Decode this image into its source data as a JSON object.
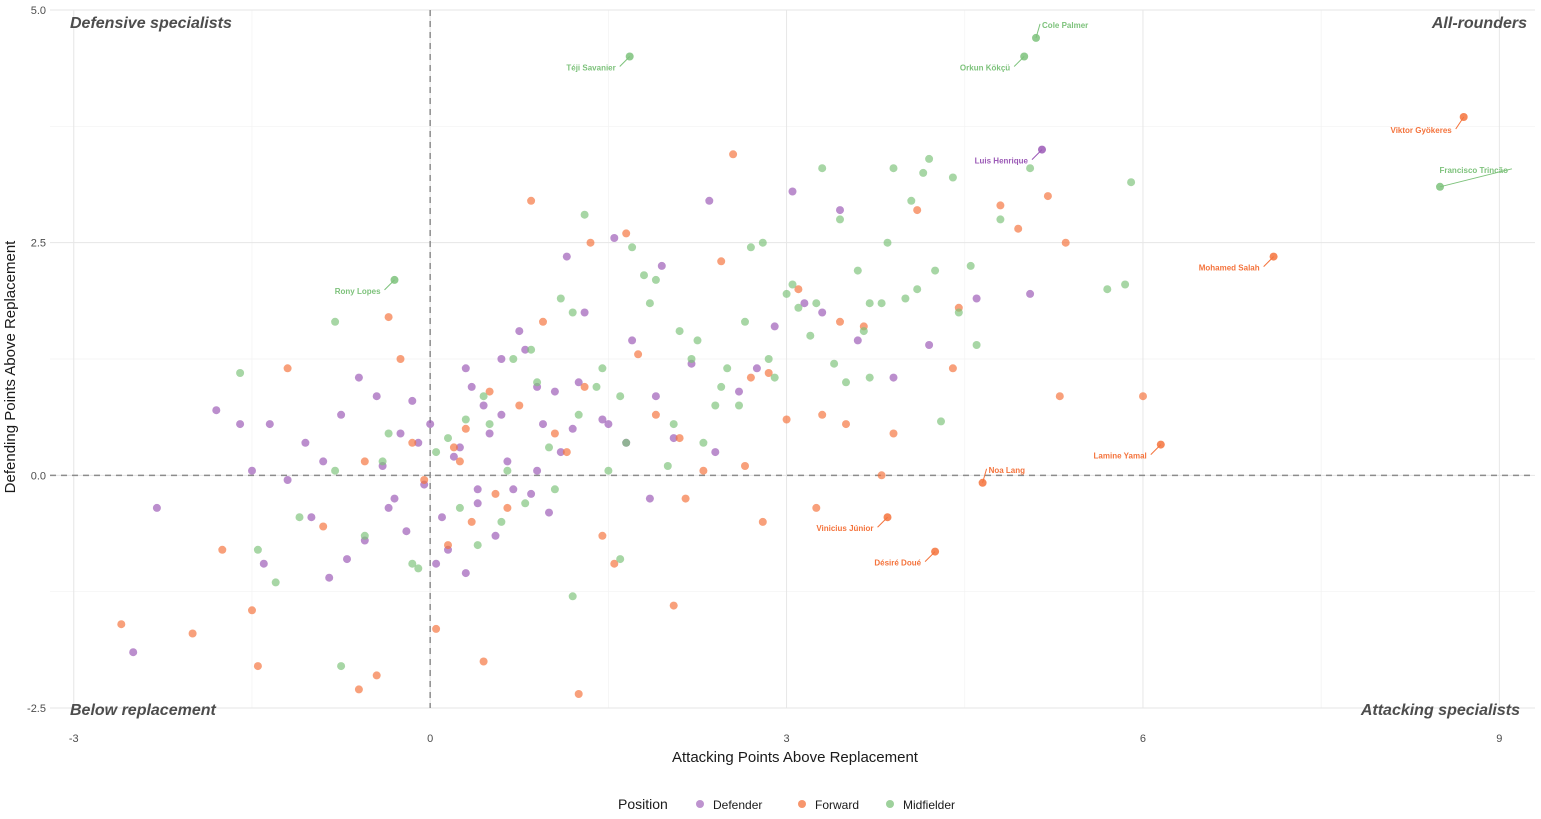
{
  "chart_data": {
    "type": "scatter",
    "xlabel": "Attacking Points Above Replacement",
    "ylabel": "Defending Points Above Replacement",
    "xlim": [
      -3.2,
      9.3
    ],
    "ylim": [
      -2.5,
      5.0
    ],
    "x_ticks": [
      -3,
      0,
      3,
      6,
      9
    ],
    "y_ticks": [
      -2.5,
      0.0,
      2.5,
      5.0
    ],
    "x_tick_labels": [
      "-3",
      "0",
      "3",
      "6",
      "9"
    ],
    "y_tick_labels": [
      "-2.5",
      "0.0",
      "2.5",
      "5.0"
    ],
    "grid": true,
    "reference_lines": {
      "x": 0,
      "y": 0
    },
    "legend": {
      "title": "Position",
      "placement": "bottom",
      "entries": [
        {
          "name": "Defender",
          "color": "#9B59B6"
        },
        {
          "name": "Forward",
          "color": "#F4733C"
        },
        {
          "name": "Midfielder",
          "color": "#7DC27B"
        }
      ]
    },
    "quadrant_labels": {
      "top_left": "Defensive specialists",
      "top_right": "All-rounders",
      "bottom_left": "Below replacement",
      "bottom_right": "Attacking specialists"
    },
    "labeled_points": [
      {
        "name": "Cole Palmer",
        "x": 5.1,
        "y": 4.7,
        "series": "Midfielder"
      },
      {
        "name": "Orkun Kökçü",
        "x": 5.0,
        "y": 4.5,
        "series": "Midfielder"
      },
      {
        "name": "Téji Savanier",
        "x": 1.68,
        "y": 4.5,
        "series": "Midfielder"
      },
      {
        "name": "Viktor Gyökeres",
        "x": 8.7,
        "y": 3.85,
        "series": "Forward"
      },
      {
        "name": "Luis Henrique",
        "x": 5.15,
        "y": 3.5,
        "series": "Defender"
      },
      {
        "name": "Francisco Trincão",
        "x": 8.5,
        "y": 3.1,
        "series": "Midfielder"
      },
      {
        "name": "Mohamed Salah",
        "x": 7.1,
        "y": 2.35,
        "series": "Forward"
      },
      {
        "name": "Rony Lopes",
        "x": -0.3,
        "y": 2.1,
        "series": "Midfielder"
      },
      {
        "name": "Noa Lang",
        "x": 4.65,
        "y": -0.08,
        "series": "Forward"
      },
      {
        "name": "Lamine Yamal",
        "x": 6.15,
        "y": 0.33,
        "series": "Forward"
      },
      {
        "name": "Vinicius Júnior",
        "x": 3.85,
        "y": -0.45,
        "series": "Forward"
      },
      {
        "name": "Désiré Doué",
        "x": 4.25,
        "y": -0.82,
        "series": "Forward"
      }
    ],
    "series": [
      {
        "name": "Defender",
        "color": "#9B59B6",
        "x": [
          -2.3,
          -1.8,
          -1.6,
          -1.5,
          -1.35,
          -1.2,
          -1.05,
          -0.9,
          -0.75,
          -0.6,
          -0.45,
          -0.3,
          -0.1,
          0.1,
          0.3,
          0.5,
          0.7,
          0.9,
          1.1,
          1.3,
          1.5,
          1.7,
          1.9,
          2.2,
          2.4,
          2.6,
          2.9,
          3.15,
          3.3,
          3.6,
          3.9,
          4.2,
          4.6,
          5.05,
          0.2,
          0.4,
          0.0,
          -0.2,
          0.6,
          0.8,
          1.0,
          1.2,
          0.15,
          0.35,
          0.55,
          -0.4,
          -0.7,
          -1.0,
          0.25,
          0.45,
          0.65,
          0.85,
          1.05,
          1.25,
          -0.05,
          -0.25,
          -0.55,
          -0.85,
          1.45,
          1.65,
          1.85,
          2.05,
          0.05,
          0.3,
          0.6,
          0.9,
          -0.15,
          -0.35,
          0.75,
          1.15,
          1.55,
          1.95,
          2.35,
          2.75,
          3.05,
          3.45,
          -2.5,
          -1.4,
          0.95,
          0.4
        ],
        "y": [
          -0.35,
          0.7,
          0.55,
          0.05,
          0.55,
          -0.05,
          0.35,
          0.15,
          0.65,
          1.05,
          0.85,
          -0.25,
          0.35,
          -0.45,
          1.15,
          0.45,
          -0.15,
          0.95,
          0.25,
          1.75,
          0.55,
          1.45,
          0.85,
          1.2,
          0.25,
          0.9,
          1.6,
          1.85,
          1.75,
          1.45,
          1.05,
          1.4,
          1.9,
          1.95,
          0.2,
          -0.3,
          0.55,
          -0.6,
          0.65,
          1.35,
          -0.4,
          0.5,
          -0.8,
          0.95,
          -0.65,
          0.1,
          -0.9,
          -0.45,
          0.3,
          0.75,
          0.15,
          -0.2,
          0.9,
          1.0,
          -0.1,
          0.45,
          -0.7,
          -1.1,
          0.6,
          0.35,
          -0.25,
          0.4,
          -0.95,
          -1.05,
          1.25,
          0.05,
          0.8,
          -0.35,
          1.55,
          2.35,
          2.55,
          2.25,
          2.95,
          1.15,
          3.05,
          2.85,
          -1.9,
          -0.95,
          0.55,
          -0.15
        ]
      },
      {
        "name": "Forward",
        "color": "#F4733C",
        "x": [
          -2.6,
          -2.0,
          -1.75,
          -1.5,
          -1.45,
          -1.2,
          -0.9,
          -0.6,
          -0.45,
          -0.35,
          -0.15,
          0.05,
          0.25,
          0.45,
          0.65,
          0.85,
          1.05,
          1.25,
          1.45,
          1.65,
          1.9,
          2.05,
          2.3,
          2.55,
          2.8,
          3.0,
          3.25,
          3.5,
          3.8,
          4.1,
          4.4,
          4.8,
          5.2,
          5.35,
          6.0,
          0.3,
          0.55,
          0.15,
          -0.25,
          0.75,
          1.15,
          1.55,
          2.15,
          2.65,
          3.1,
          3.65,
          4.45,
          4.95,
          -0.55,
          0.35,
          0.95,
          1.35,
          1.75,
          2.45,
          2.85,
          3.45,
          0.5,
          0.2,
          -0.05,
          1.3,
          2.1,
          2.7,
          3.3,
          3.9,
          5.3
        ],
        "y": [
          -1.6,
          -1.7,
          -0.8,
          -1.45,
          -2.05,
          1.15,
          -0.55,
          -2.3,
          -2.15,
          1.7,
          0.35,
          -1.65,
          0.15,
          -2.0,
          -0.35,
          2.95,
          0.45,
          -2.35,
          -0.65,
          2.6,
          0.65,
          -1.4,
          0.05,
          3.45,
          -0.5,
          0.6,
          -0.35,
          0.55,
          0.0,
          2.85,
          1.15,
          2.9,
          3.0,
          2.5,
          0.85,
          0.5,
          -0.2,
          -0.75,
          1.25,
          0.75,
          0.25,
          -0.95,
          -0.25,
          0.1,
          2.0,
          1.6,
          1.8,
          2.65,
          0.15,
          -0.5,
          1.65,
          2.5,
          1.3,
          2.3,
          1.1,
          1.65,
          0.9,
          0.3,
          -0.05,
          0.95,
          0.4,
          1.05,
          0.65,
          0.45,
          0.85
        ]
      },
      {
        "name": "Midfielder",
        "color": "#7DC27B",
        "x": [
          -1.6,
          -1.45,
          -1.3,
          -1.1,
          -0.8,
          -0.55,
          -0.35,
          -0.15,
          0.05,
          0.25,
          0.45,
          0.65,
          0.85,
          1.05,
          1.25,
          1.45,
          1.65,
          1.85,
          2.05,
          2.25,
          2.45,
          2.65,
          2.85,
          3.05,
          3.25,
          3.45,
          3.65,
          3.85,
          4.05,
          4.25,
          4.45,
          4.55,
          4.8,
          5.05,
          5.7,
          5.85,
          5.9,
          0.3,
          0.6,
          0.9,
          1.2,
          1.5,
          1.8,
          2.1,
          2.4,
          2.7,
          3.0,
          3.3,
          3.6,
          3.9,
          4.2,
          0.15,
          0.4,
          0.7,
          1.0,
          1.3,
          1.6,
          1.9,
          2.2,
          2.5,
          2.8,
          3.1,
          3.4,
          3.7,
          4.0,
          4.3,
          4.6,
          -0.75,
          -0.4,
          -0.1,
          0.5,
          0.8,
          1.1,
          1.4,
          1.7,
          2.0,
          2.3,
          2.6,
          2.9,
          3.2,
          3.5,
          3.8,
          4.1,
          4.4,
          -0.8,
          1.2,
          1.6,
          4.15,
          3.7
        ],
        "y": [
          1.1,
          -0.8,
          -1.15,
          -0.45,
          1.65,
          -0.65,
          0.45,
          -0.95,
          0.25,
          -0.35,
          0.85,
          0.05,
          1.35,
          -0.15,
          0.65,
          1.15,
          0.35,
          1.85,
          0.55,
          1.45,
          0.95,
          1.65,
          1.25,
          2.05,
          1.85,
          2.75,
          1.55,
          2.5,
          2.95,
          2.2,
          1.75,
          2.25,
          2.75,
          3.3,
          2.0,
          2.05,
          3.15,
          0.6,
          -0.5,
          1.0,
          1.75,
          0.05,
          2.15,
          1.55,
          0.75,
          2.45,
          1.95,
          3.3,
          2.2,
          3.3,
          3.4,
          0.4,
          -0.75,
          1.25,
          0.3,
          2.8,
          0.85,
          2.1,
          1.25,
          1.15,
          2.5,
          1.8,
          1.2,
          1.85,
          1.9,
          0.58,
          1.4,
          -2.05,
          0.15,
          -1.0,
          0.55,
          -0.3,
          1.9,
          0.95,
          2.45,
          0.1,
          0.35,
          0.75,
          1.05,
          1.5,
          1.0,
          1.85,
          2.0,
          3.2,
          0.05,
          -1.3,
          -0.9,
          3.25,
          1.05
        ]
      }
    ]
  }
}
